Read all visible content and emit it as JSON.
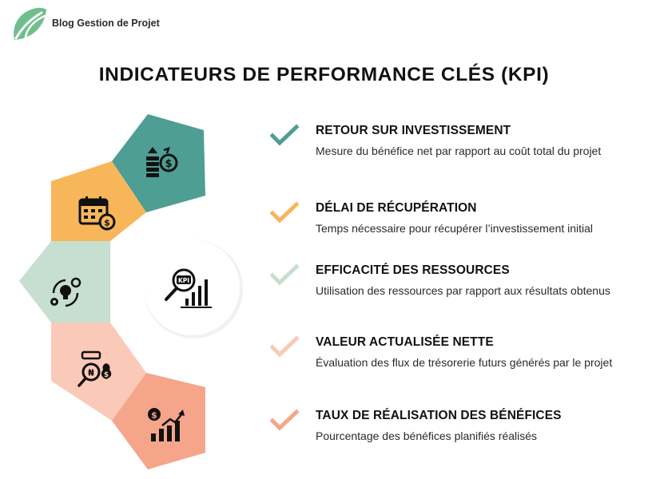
{
  "header": {
    "brand": "Blog Gestion de Projet",
    "logo_icon": "leaf-logo-icon"
  },
  "title": "INDICATEURS DE PERFORMANCE CLÉS (KPI)",
  "center_icon": {
    "label": "KPI",
    "icon": "magnifier-chart-icon"
  },
  "colors": {
    "teal": "#4e9e94",
    "orange": "#f7b65a",
    "sage": "#c6dfd0",
    "peach": "#fbc9b7",
    "salmon": "#f5a58a",
    "dark": "#111111"
  },
  "segments": [
    {
      "icon": "coins-dollar-cycle-icon"
    },
    {
      "icon": "calendar-dollar-icon"
    },
    {
      "icon": "bulb-gear-cycle-icon"
    },
    {
      "icon": "money-bag-magnifier-icon"
    },
    {
      "icon": "dollar-growth-chart-icon"
    }
  ],
  "items": [
    {
      "title": "RETOUR SUR INVESTISSEMENT",
      "description": "Mesure du bénéfice net par rapport au coût total du projet",
      "check_color": "#4e9e94"
    },
    {
      "title": "DÉLAI DE RÉCUPÉRATION",
      "description": "Temps nécessaire pour récupérer l’investissement initial",
      "check_color": "#f7b65a"
    },
    {
      "title": "EFFICACITÉ DES RESSOURCES",
      "description": "Utilisation des ressources par rapport aux résultats obtenus",
      "check_color": "#c6dfd0"
    },
    {
      "title": "VALEUR ACTUALISÉE NETTE",
      "description": "Évaluation des flux de trésorerie futurs générés par le projet",
      "check_color": "#fbc9b7"
    },
    {
      "title": "TAUX DE RÉALISATION DES BÉNÉFICES",
      "description": "Pourcentage des bénéfices planifiés réalisés",
      "check_color": "#f5a58a"
    }
  ]
}
